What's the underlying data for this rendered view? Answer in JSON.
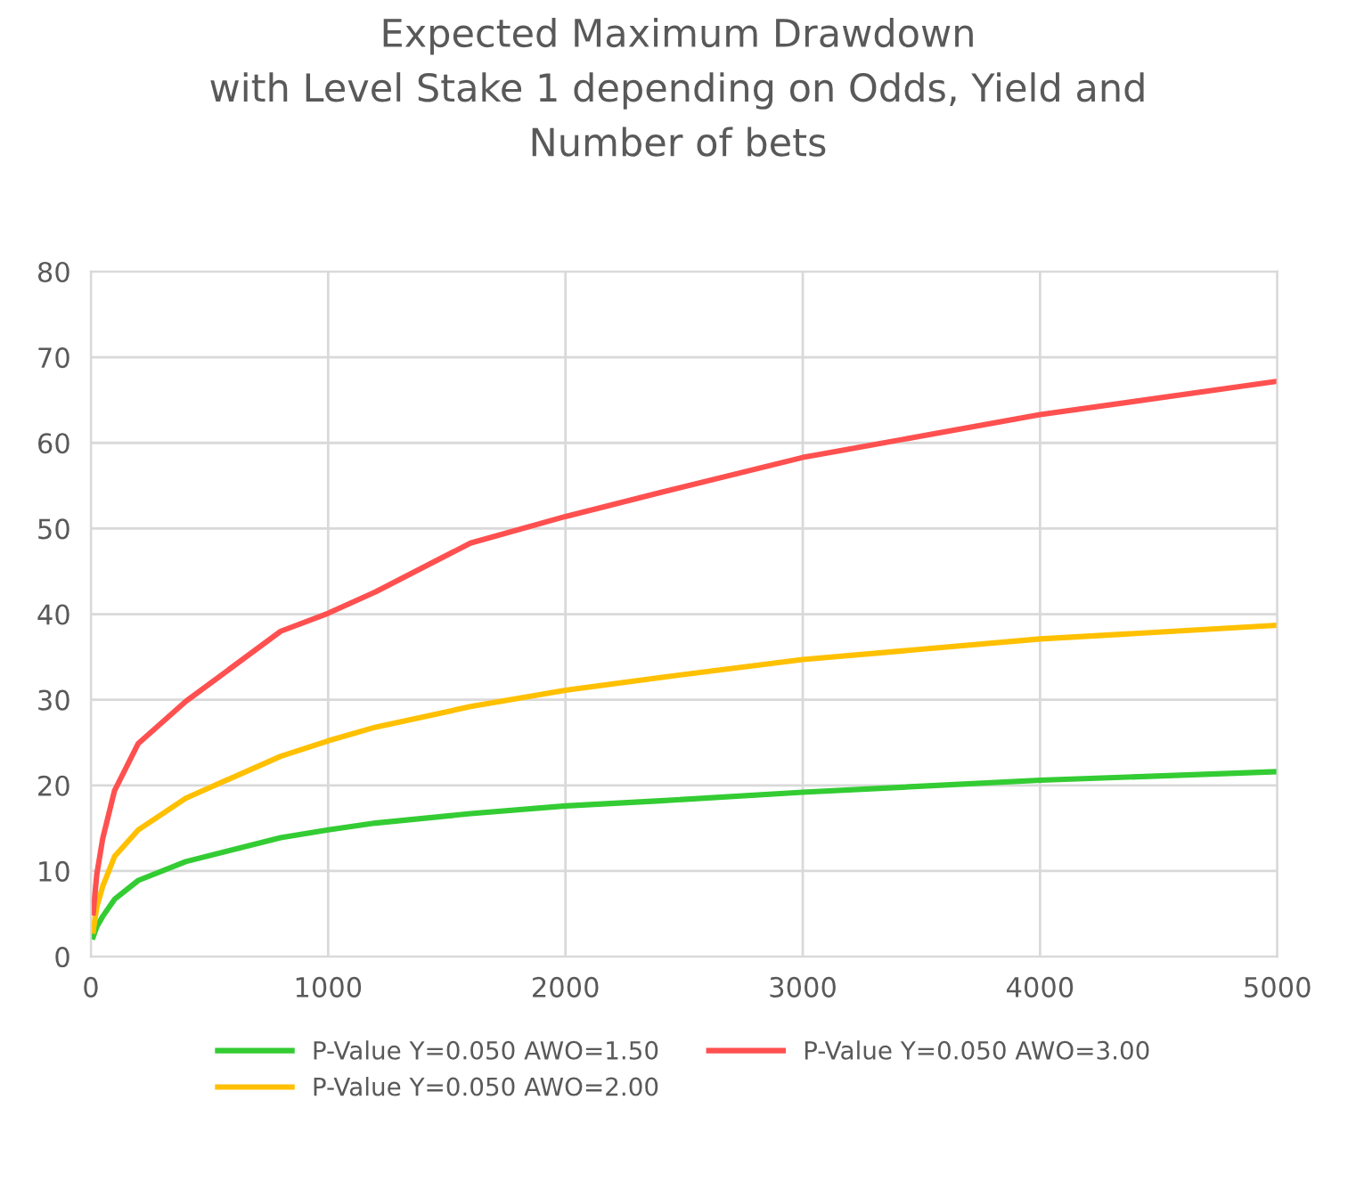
{
  "chart_data": {
    "type": "line",
    "title": "Expected Maximum Drawdown\nwith Level Stake 1 depending on Odds, Yield and\nNumber of bets",
    "x": [
      10,
      25,
      50,
      100,
      200,
      400,
      800,
      1000,
      1200,
      1600,
      2000,
      2400,
      3000,
      4000,
      5000
    ],
    "series": [
      {
        "name": "P-Value Y=0.050 AWO=1.50",
        "color": "#33cc33",
        "values": [
          2.3,
          3.5,
          4.7,
          6.7,
          8.9,
          11.1,
          13.9,
          14.8,
          15.6,
          16.7,
          17.6,
          18.2,
          19.2,
          20.6,
          21.6
        ]
      },
      {
        "name": "P-Value Y=0.050 AWO=2.00",
        "color": "#ffc000",
        "values": [
          3.0,
          5.8,
          8.2,
          11.7,
          14.8,
          18.5,
          23.4,
          25.2,
          26.8,
          29.2,
          31.1,
          32.6,
          34.7,
          37.1,
          38.7
        ]
      },
      {
        "name": "P-Value Y=0.050 AWO=3.00",
        "color": "#ff5050",
        "values": [
          5.1,
          9.6,
          13.8,
          19.4,
          24.9,
          29.8,
          38.0,
          40.1,
          42.6,
          48.3,
          51.4,
          54.2,
          58.3,
          63.3,
          67.2
        ]
      }
    ],
    "xlim": [
      0,
      5000
    ],
    "xticks": [
      0,
      1000,
      2000,
      3000,
      4000,
      5000
    ],
    "ylim": [
      0,
      80
    ],
    "yticks": [
      0,
      10,
      20,
      30,
      40,
      50,
      60,
      70,
      80
    ],
    "grid": true,
    "legend": "bottom",
    "marker": "none",
    "line_style": "solid"
  }
}
